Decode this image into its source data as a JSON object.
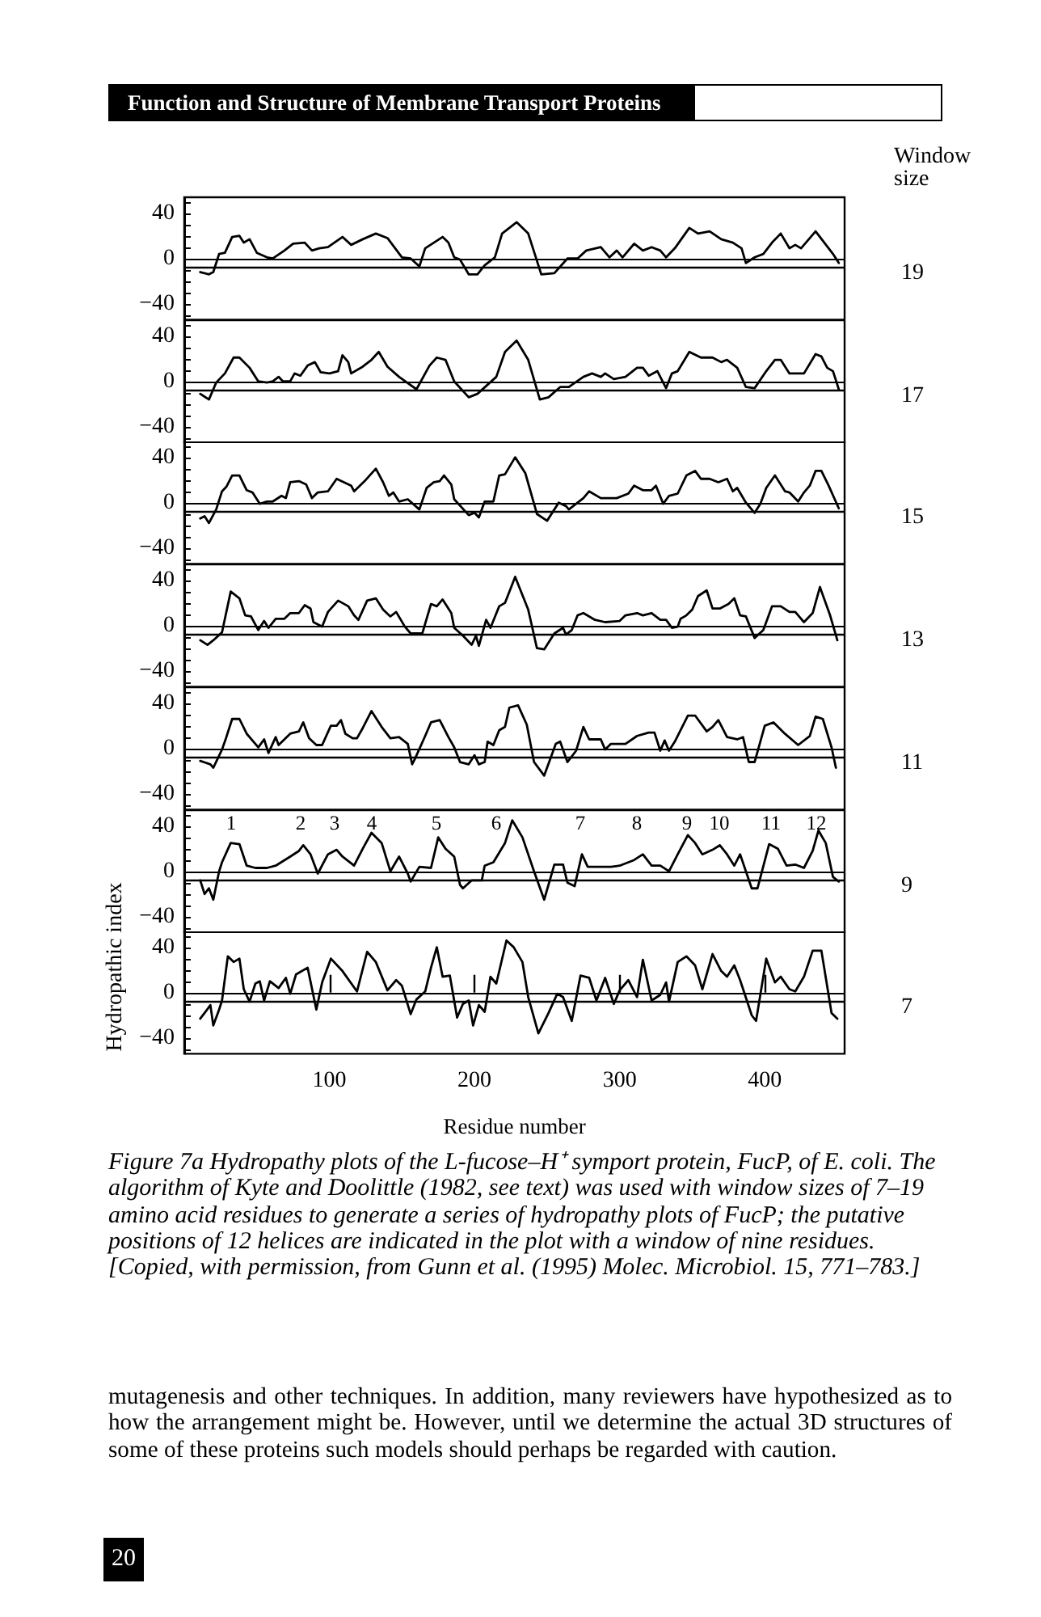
{
  "chart_data": [
    {
      "type": "line",
      "legend_title": "Window size",
      "annotations": [
        "Function and Structure of Membrane Transport Proteins"
      ],
      "xlim": [
        0,
        455
      ],
      "ylim": [
        -54,
        54
      ],
      "yticks": [
        {
          "value": -50,
          "label": null
        },
        -40,
        {
          "value": -30,
          "label": null
        },
        {
          "value": -20,
          "label": null
        },
        {
          "value": -10,
          "label": null
        },
        0,
        {
          "value": 10,
          "label": null
        },
        {
          "value": 20,
          "label": null
        },
        {
          "value": 30,
          "label": null
        },
        40,
        {
          "value": 50,
          "label": null
        }
      ],
      "tick_labels": "y",
      "ref_lines": [
        {
          "axis": "y",
          "value": -8
        }
      ],
      "series": [
        {
          "name": "19",
          "color": "#000000",
          "x": [
            11,
            17,
            20,
            24,
            28,
            33,
            38,
            41,
            45,
            50,
            57,
            61,
            69,
            75,
            83,
            88,
            93,
            99,
            109,
            115,
            123,
            132,
            140,
            150,
            156,
            162,
            166,
            172,
            178,
            182,
            186,
            190,
            196,
            202,
            207,
            214,
            219,
            229,
            237,
            246,
            255,
            264,
            271,
            277,
            287,
            293,
            298,
            302,
            310,
            316,
            322,
            328,
            332,
            338,
            348,
            354,
            362,
            370,
            378,
            384,
            387,
            393,
            399,
            405,
            411,
            417,
            421,
            425,
            435,
            441,
            447,
            451
          ],
          "values": [
            -12,
            -14,
            -12,
            4,
            5,
            19,
            20,
            14,
            17,
            5,
            1,
            0,
            7,
            13,
            14,
            7,
            9,
            10,
            19,
            12,
            17,
            22,
            18,
            1,
            0,
            -7,
            9,
            14,
            19,
            14,
            1,
            -1,
            -14,
            -14,
            -6,
            1,
            22,
            32,
            22,
            -14,
            -13,
            0,
            0,
            7,
            10,
            1,
            7,
            1,
            13,
            7,
            10,
            7,
            1,
            9,
            27,
            22,
            24,
            17,
            14,
            9,
            -4,
            1,
            4,
            14,
            22,
            9,
            12,
            9,
            24,
            14,
            4,
            -4
          ]
        }
      ]
    },
    {
      "type": "line",
      "xlim": [
        0,
        455
      ],
      "ylim": [
        -54,
        54
      ],
      "yticks": [
        {
          "value": -50,
          "label": null
        },
        -40,
        {
          "value": -30,
          "label": null
        },
        {
          "value": -20,
          "label": null
        },
        {
          "value": -10,
          "label": null
        },
        0,
        {
          "value": 10,
          "label": null
        },
        {
          "value": 20,
          "label": null
        },
        {
          "value": 30,
          "label": null
        },
        40,
        {
          "value": 50,
          "label": null
        }
      ],
      "tick_labels": "y",
      "ref_lines": [
        {
          "axis": "y",
          "value": -8
        }
      ],
      "series": [
        {
          "name": "17",
          "color": "#000000",
          "x": [
            11,
            17,
            22,
            28,
            34,
            38,
            45,
            51,
            57,
            61,
            65,
            68,
            73,
            76,
            80,
            85,
            90,
            94,
            100,
            106,
            109,
            113,
            115,
            123,
            129,
            134,
            140,
            148,
            160,
            169,
            174,
            180,
            186,
            196,
            202,
            215,
            221,
            229,
            237,
            245,
            251,
            259,
            265,
            275,
            281,
            287,
            290,
            296,
            304,
            312,
            316,
            320,
            326,
            332,
            336,
            340,
            348,
            356,
            364,
            370,
            374,
            381,
            387,
            393,
            401,
            407,
            411,
            417,
            427,
            435,
            439,
            443,
            447,
            451
          ],
          "values": [
            -11,
            -16,
            -1,
            7,
            21,
            21,
            12,
            0,
            -1,
            0,
            4,
            0,
            0,
            7,
            5,
            14,
            17,
            8,
            7,
            9,
            23,
            17,
            7,
            13,
            19,
            26,
            13,
            4,
            -7,
            14,
            21,
            19,
            0,
            -14,
            -11,
            4,
            26,
            36,
            19,
            -16,
            -14,
            -5,
            -5,
            4,
            7,
            4,
            7,
            2,
            4,
            12,
            12,
            5,
            9,
            -6,
            7,
            9,
            26,
            21,
            21,
            17,
            19,
            12,
            -5,
            -6,
            9,
            19,
            19,
            7,
            7,
            24,
            22,
            12,
            9,
            -7
          ]
        }
      ]
    },
    {
      "type": "line",
      "xlim": [
        0,
        455
      ],
      "ylim": [
        -54,
        54
      ],
      "yticks": [
        {
          "value": -50,
          "label": null
        },
        -40,
        {
          "value": -30,
          "label": null
        },
        {
          "value": -20,
          "label": null
        },
        {
          "value": -10,
          "label": null
        },
        0,
        {
          "value": 10,
          "label": null
        },
        {
          "value": 20,
          "label": null
        },
        {
          "value": 30,
          "label": null
        },
        40,
        {
          "value": 50,
          "label": null
        }
      ],
      "tick_labels": "y",
      "ref_lines": [
        {
          "axis": "y",
          "value": -8
        }
      ],
      "series": [
        {
          "name": "15",
          "color": "#000000",
          "x": [
            11,
            14,
            17,
            22,
            26,
            29,
            33,
            38,
            43,
            47,
            52,
            57,
            61,
            67,
            70,
            73,
            79,
            84,
            88,
            92,
            99,
            105,
            115,
            117,
            125,
            132,
            137,
            141,
            144,
            148,
            154,
            162,
            167,
            172,
            176,
            179,
            184,
            186,
            196,
            200,
            203,
            207,
            213,
            217,
            221,
            228,
            235,
            243,
            250,
            258,
            263,
            265,
            275,
            279,
            287,
            290,
            298,
            306,
            310,
            316,
            322,
            325,
            330,
            334,
            340,
            346,
            352,
            356,
            362,
            368,
            374,
            378,
            381,
            387,
            393,
            397,
            401,
            407,
            414,
            417,
            423,
            427,
            431,
            435,
            439,
            444,
            451
          ],
          "values": [
            -14,
            -12,
            -18,
            -6,
            10,
            14,
            24,
            24,
            11,
            9,
            -1,
            1,
            1,
            6,
            4,
            18,
            19,
            16,
            4,
            9,
            10,
            21,
            15,
            10,
            20,
            30,
            18,
            6,
            9,
            1,
            3,
            -6,
            13,
            18,
            19,
            24,
            16,
            3,
            -11,
            -9,
            -13,
            1,
            1,
            24,
            25,
            40,
            26,
            -10,
            -16,
            0,
            -3,
            -6,
            4,
            10,
            4,
            4,
            4,
            8,
            15,
            11,
            11,
            15,
            -1,
            6,
            8,
            24,
            28,
            21,
            21,
            18,
            21,
            10,
            13,
            0,
            -9,
            -1,
            13,
            24,
            10,
            9,
            1,
            9,
            15,
            28,
            28,
            15,
            -5
          ]
        }
      ]
    },
    {
      "type": "line",
      "xlim": [
        0,
        455
      ],
      "ylim": [
        -54,
        54
      ],
      "yticks": [
        {
          "value": -50,
          "label": null
        },
        -40,
        {
          "value": -30,
          "label": null
        },
        {
          "value": -20,
          "label": null
        },
        {
          "value": -10,
          "label": null
        },
        0,
        {
          "value": 10,
          "label": null
        },
        {
          "value": 20,
          "label": null
        },
        {
          "value": 30,
          "label": null
        },
        40,
        {
          "value": 50,
          "label": null
        }
      ],
      "tick_labels": "y",
      "ref_lines": [
        {
          "axis": "y",
          "value": -8
        }
      ],
      "series": [
        {
          "name": "13",
          "color": "#000000",
          "x": [
            11,
            16,
            20,
            26,
            28,
            32,
            38,
            42,
            46,
            51,
            55,
            58,
            63,
            69,
            73,
            79,
            83,
            87,
            89,
            95,
            99,
            106,
            113,
            117,
            120,
            126,
            132,
            137,
            142,
            146,
            152,
            156,
            164,
            170,
            174,
            178,
            184,
            186,
            192,
            198,
            201,
            203,
            208,
            211,
            217,
            221,
            228,
            237,
            243,
            248,
            255,
            261,
            263,
            267,
            271,
            275,
            283,
            290,
            300,
            304,
            312,
            316,
            322,
            328,
            332,
            336,
            340,
            342,
            346,
            350,
            354,
            360,
            364,
            369,
            375,
            379,
            383,
            387,
            393,
            399,
            405,
            411,
            417,
            421,
            427,
            433,
            438,
            445,
            450
          ],
          "values": [
            -13,
            -17,
            -13,
            -6,
            6,
            30,
            24,
            9,
            8,
            -4,
            4,
            -2,
            6,
            6,
            11,
            11,
            18,
            15,
            3,
            -1,
            12,
            22,
            17,
            9,
            5,
            22,
            24,
            14,
            8,
            12,
            -1,
            -7,
            -7,
            19,
            17,
            23,
            11,
            -2,
            -9,
            -17,
            -9,
            -18,
            5,
            -2,
            17,
            20,
            43,
            14,
            -20,
            -21,
            -7,
            -2,
            -8,
            -4,
            9,
            11,
            5,
            3,
            4,
            9,
            11,
            9,
            11,
            5,
            5,
            -2,
            -1,
            6,
            9,
            14,
            26,
            31,
            15,
            15,
            19,
            24,
            9,
            8,
            -11,
            -4,
            17,
            17,
            12,
            12,
            3,
            11,
            34,
            9,
            -13
          ]
        }
      ]
    },
    {
      "type": "line",
      "xlim": [
        0,
        455
      ],
      "ylim": [
        -54,
        54
      ],
      "yticks": [
        {
          "value": -50,
          "label": null
        },
        -40,
        {
          "value": -30,
          "label": null
        },
        {
          "value": -20,
          "label": null
        },
        {
          "value": -10,
          "label": null
        },
        0,
        {
          "value": 10,
          "label": null
        },
        {
          "value": 20,
          "label": null
        },
        {
          "value": 30,
          "label": null
        },
        40,
        {
          "value": 50,
          "label": null
        }
      ],
      "tick_labels": "y",
      "ref_lines": [
        {
          "axis": "y",
          "value": -8
        }
      ],
      "series": [
        {
          "name": "11",
          "color": "#000000",
          "x": [
            11,
            18,
            20,
            26,
            29,
            33,
            38,
            43,
            49,
            51,
            55,
            58,
            63,
            65,
            73,
            79,
            82,
            86,
            91,
            95,
            101,
            105,
            108,
            111,
            116,
            119,
            123,
            129,
            136,
            142,
            148,
            154,
            157,
            159,
            166,
            170,
            176,
            182,
            186,
            190,
            196,
            200,
            203,
            207,
            209,
            213,
            217,
            221,
            224,
            230,
            236,
            241,
            248,
            256,
            259,
            264,
            270,
            275,
            279,
            287,
            290,
            294,
            304,
            312,
            320,
            324,
            328,
            331,
            334,
            338,
            347,
            352,
            360,
            364,
            368,
            374,
            381,
            385,
            389,
            393,
            400,
            406,
            413,
            423,
            431,
            435,
            440,
            446,
            449
          ],
          "values": [
            -11,
            -14,
            -17,
            -1,
            10,
            26,
            26,
            13,
            4,
            1,
            8,
            -4,
            10,
            3,
            13,
            15,
            23,
            9,
            3,
            3,
            20,
            20,
            25,
            13,
            9,
            9,
            18,
            33,
            19,
            9,
            10,
            4,
            -14,
            -9,
            11,
            23,
            25,
            10,
            1,
            -12,
            -14,
            -6,
            -14,
            -12,
            6,
            3,
            16,
            19,
            36,
            38,
            21,
            -12,
            -24,
            4,
            6,
            -12,
            -2,
            19,
            8,
            8,
            -1,
            4,
            4,
            11,
            14,
            14,
            -2,
            7,
            -2,
            6,
            29,
            29,
            15,
            19,
            25,
            10,
            8,
            10,
            -12,
            -12,
            20,
            23,
            14,
            3,
            11,
            28,
            26,
            1,
            -17
          ]
        }
      ]
    },
    {
      "type": "line",
      "xlim": [
        0,
        455
      ],
      "ylim": [
        -54,
        54
      ],
      "yticks": [
        {
          "value": -50,
          "label": null
        },
        -40,
        {
          "value": -30,
          "label": null
        },
        {
          "value": -20,
          "label": null
        },
        {
          "value": -10,
          "label": null
        },
        0,
        {
          "value": 10,
          "label": null
        },
        {
          "value": 20,
          "label": null
        },
        {
          "value": 30,
          "label": null
        },
        40,
        {
          "value": 50,
          "label": null
        }
      ],
      "tick_labels": "y",
      "ref_lines": [
        {
          "axis": "y",
          "value": -8
        }
      ],
      "annotations": [
        "1",
        "2",
        "3",
        "4",
        "5",
        "6",
        "7",
        "8",
        "9",
        "10",
        "11",
        "12"
      ],
      "series": [
        {
          "name": "9",
          "color": "#000000",
          "x": [
            11,
            14,
            17,
            20,
            24,
            26,
            32,
            38,
            43,
            49,
            57,
            63,
            73,
            79,
            82,
            87,
            92,
            99,
            105,
            109,
            117,
            123,
            129,
            136,
            142,
            148,
            154,
            156,
            162,
            170,
            175,
            180,
            186,
            190,
            192,
            198,
            205,
            207,
            213,
            221,
            226,
            233,
            241,
            248,
            255,
            261,
            264,
            269,
            274,
            278,
            287,
            294,
            300,
            310,
            316,
            322,
            328,
            334,
            340,
            347,
            352,
            357,
            364,
            369,
            374,
            379,
            383,
            387,
            391,
            395,
            403,
            409,
            415,
            421,
            427,
            433,
            437,
            442,
            447,
            451
          ],
          "values": [
            -8,
            -20,
            -15,
            -25,
            0,
            8,
            25,
            24,
            5,
            3,
            3,
            5,
            13,
            18,
            23,
            15,
            -2,
            15,
            19,
            13,
            5,
            20,
            34,
            25,
            0,
            13,
            -2,
            -9,
            4,
            3,
            30,
            20,
            13,
            -12,
            -15,
            -8,
            -8,
            5,
            8,
            25,
            45,
            30,
            0,
            -25,
            6,
            6,
            -10,
            -13,
            15,
            4,
            4,
            4,
            5,
            10,
            15,
            5,
            5,
            0,
            15,
            32,
            25,
            15,
            19,
            23,
            15,
            5,
            15,
            0,
            -15,
            -15,
            24,
            20,
            5,
            6,
            3,
            18,
            36,
            25,
            -5,
            -9
          ]
        }
      ]
    },
    {
      "type": "line",
      "xlabel": "Residue number",
      "ylabel": "Hydropathic index",
      "xlim": [
        0,
        455
      ],
      "ylim": [
        -54,
        54
      ],
      "xticks": [
        100,
        200,
        300,
        400
      ],
      "yticks": [
        {
          "value": -50,
          "label": null
        },
        -40,
        {
          "value": -30,
          "label": null
        },
        {
          "value": -20,
          "label": null
        },
        {
          "value": -10,
          "label": null
        },
        0,
        {
          "value": 10,
          "label": null
        },
        {
          "value": 20,
          "label": null
        },
        {
          "value": 30,
          "label": null
        },
        40,
        {
          "value": 50,
          "label": null
        }
      ],
      "ref_lines": [
        {
          "axis": "y",
          "value": -8
        }
      ],
      "annotations": [
        "Figure 7a Hydropathy plots of the L-fucose–H⁺ symport protein, FucP, of E. coli. The algorithm of Kyte and Doolittle (1982, see text) was used with window sizes of 7–19 amino acid residues to generate a series of hydropathy plots of FucP; the putative positions of 12 helices are indicated in the plot with a window of nine residues. [Copied, with permission, from Gunn et al. (1995) Molec. Microbiol. 15, 771–783.]",
        "mutagenesis and other techniques. In addition, many reviewers have hypothesized as to how the arrangement might be. However, until we determine the actual 3D structures of some of these proteins such models should perhaps be regarded with caution.",
        "20"
      ],
      "series": [
        {
          "name": "7",
          "color": "#000000",
          "x": [
            11,
            14,
            18,
            20,
            24,
            26,
            30,
            34,
            38,
            41,
            45,
            49,
            52,
            55,
            59,
            65,
            70,
            73,
            77,
            85,
            91,
            95,
            101,
            109,
            119,
            126,
            132,
            140,
            146,
            150,
            156,
            160,
            166,
            170,
            174,
            178,
            183,
            188,
            192,
            196,
            199,
            203,
            207,
            211,
            215,
            222,
            227,
            233,
            237,
            244,
            251,
            257,
            261,
            267,
            273,
            279,
            284,
            290,
            296,
            300,
            306,
            312,
            316,
            322,
            328,
            332,
            334,
            340,
            346,
            352,
            357,
            364,
            370,
            374,
            379,
            383,
            391,
            394,
            401,
            407,
            411,
            417,
            421,
            427,
            433,
            439,
            446,
            450
          ],
          "values": [
            -23,
            -18,
            -11,
            -29,
            -15,
            -7,
            32,
            27,
            30,
            3,
            -8,
            8,
            10,
            -7,
            10,
            4,
            13,
            -1,
            16,
            22,
            -15,
            9,
            30,
            19,
            1,
            36,
            27,
            2,
            11,
            6,
            -19,
            -6,
            1,
            22,
            40,
            14,
            15,
            -22,
            -10,
            -7,
            -29,
            -11,
            -17,
            14,
            8,
            46,
            40,
            27,
            -4,
            -36,
            -18,
            -1,
            -4,
            -25,
            15,
            13,
            -7,
            13,
            -10,
            2,
            11,
            -4,
            29,
            -7,
            -2,
            9,
            -8,
            27,
            32,
            24,
            3,
            34,
            19,
            14,
            24,
            11,
            -20,
            -25,
            30,
            9,
            14,
            3,
            1,
            14,
            37,
            37,
            -18,
            -23
          ]
        }
      ]
    }
  ]
}
